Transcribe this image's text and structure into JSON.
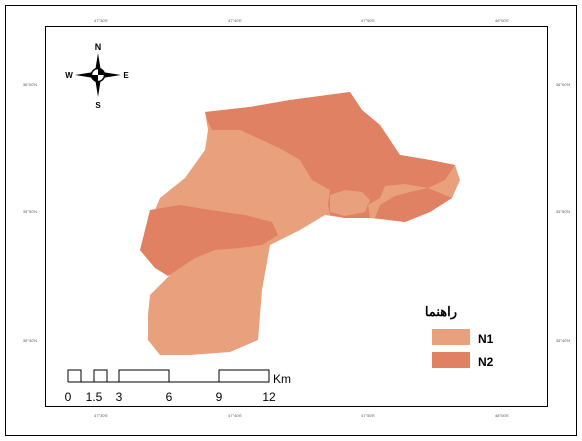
{
  "colors": {
    "n1": "#E8A07D",
    "n2": "#E08163",
    "frame": "#000000",
    "background": "#FFFFFF"
  },
  "north_arrow": {
    "icon": "compass-rose-icon",
    "n": "N",
    "s": "S",
    "e": "E",
    "w": "W"
  },
  "ticks": {
    "top": [
      "47°30'E",
      "47°40'E",
      "47°50'E",
      "48°00'E"
    ],
    "bottom": [
      "47°30'E",
      "47°40'E",
      "47°50'E",
      "48°00'E"
    ],
    "left": [
      "36°00'N",
      "35°50'N",
      "35°40'N"
    ],
    "right": [
      "36°00'N",
      "35°50'N",
      "35°40'N"
    ]
  },
  "legend": {
    "title": "راهنما",
    "items": [
      {
        "label": "N1",
        "color": "#E8A07D"
      },
      {
        "label": "N2",
        "color": "#E08163"
      }
    ]
  },
  "scale_bar": {
    "labels": [
      "0",
      "1.5",
      "3",
      "6",
      "9",
      "12"
    ],
    "unit": "Km"
  }
}
